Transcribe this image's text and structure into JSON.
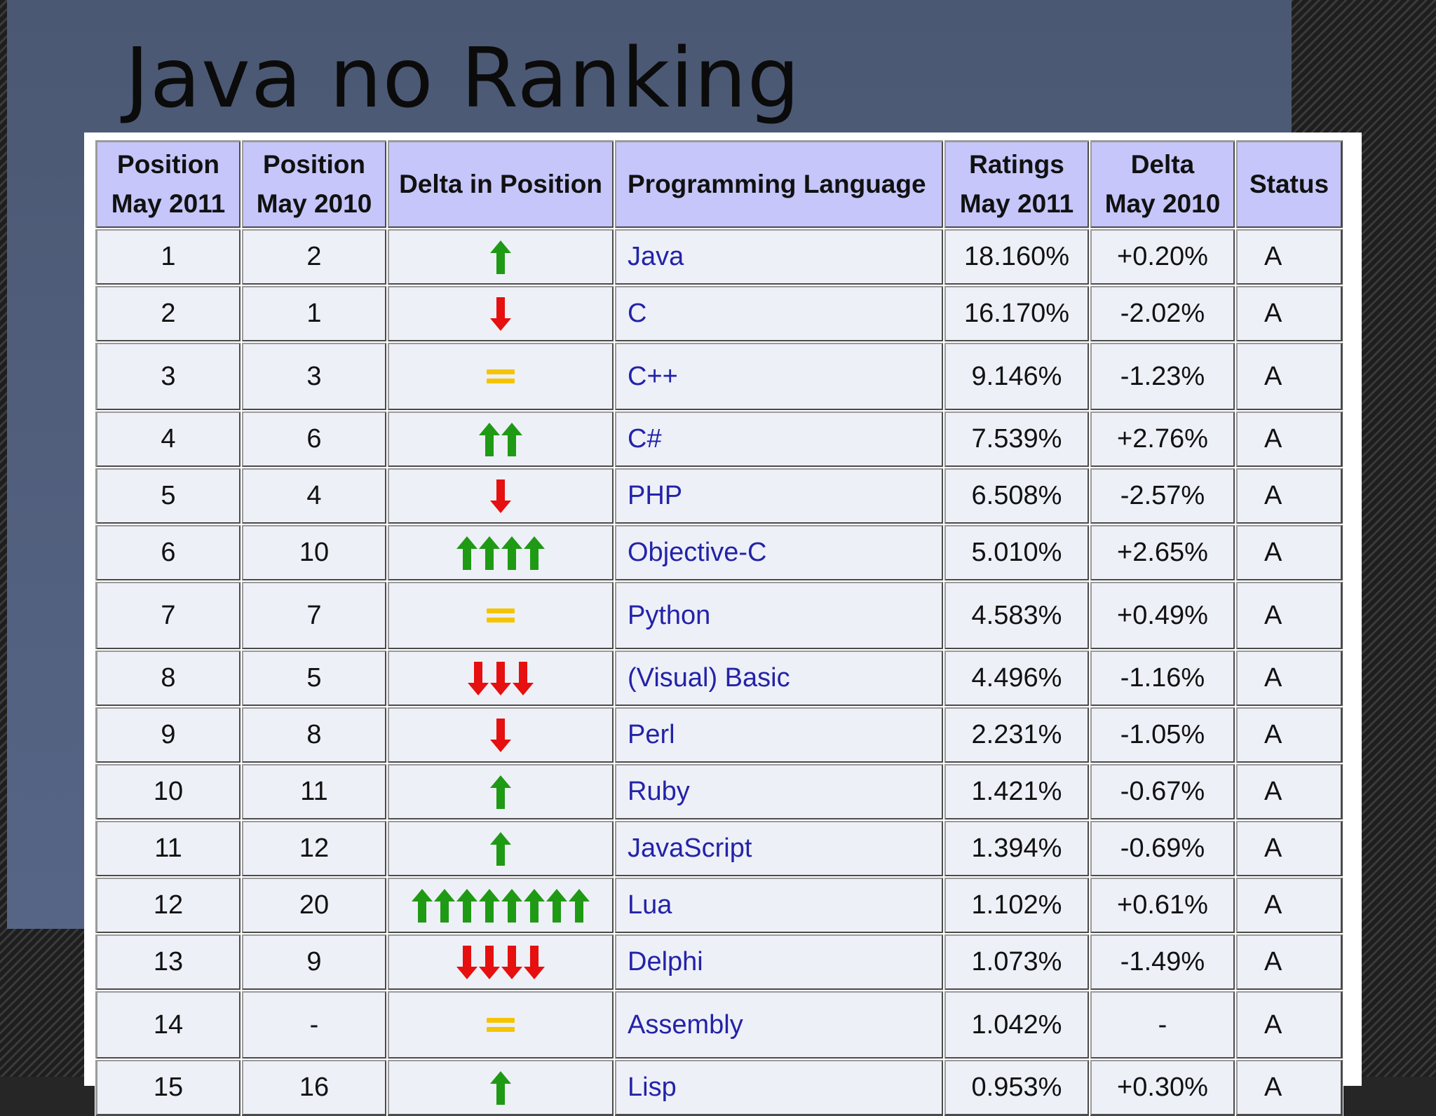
{
  "slide": {
    "title": "Java no Ranking"
  },
  "table": {
    "headers": [
      {
        "line1": "Position",
        "line2": "May 2011"
      },
      {
        "line1": "Position",
        "line2": "May 2010"
      },
      {
        "line1": "Delta in Position",
        "line2": ""
      },
      {
        "line1": "Programming Language",
        "line2": ""
      },
      {
        "line1": "Ratings",
        "line2": "May 2011"
      },
      {
        "line1": "Delta",
        "line2": "May 2010"
      },
      {
        "line1": "Status",
        "line2": ""
      }
    ],
    "rows": [
      {
        "pos2011": "1",
        "pos2010": "2",
        "delta_type": "up",
        "delta_count": 1,
        "language": "Java",
        "rating": "18.160%",
        "delta": "+0.20%",
        "status": "A"
      },
      {
        "pos2011": "2",
        "pos2010": "1",
        "delta_type": "down",
        "delta_count": 1,
        "language": "C",
        "rating": "16.170%",
        "delta": "-2.02%",
        "status": "A"
      },
      {
        "pos2011": "3",
        "pos2010": "3",
        "delta_type": "same",
        "delta_count": 0,
        "language": "C++",
        "rating": "9.146%",
        "delta": "-1.23%",
        "status": "A"
      },
      {
        "pos2011": "4",
        "pos2010": "6",
        "delta_type": "up",
        "delta_count": 2,
        "language": "C#",
        "rating": "7.539%",
        "delta": "+2.76%",
        "status": "A"
      },
      {
        "pos2011": "5",
        "pos2010": "4",
        "delta_type": "down",
        "delta_count": 1,
        "language": "PHP",
        "rating": "6.508%",
        "delta": "-2.57%",
        "status": "A"
      },
      {
        "pos2011": "6",
        "pos2010": "10",
        "delta_type": "up",
        "delta_count": 4,
        "language": "Objective-C",
        "rating": "5.010%",
        "delta": "+2.65%",
        "status": "A"
      },
      {
        "pos2011": "7",
        "pos2010": "7",
        "delta_type": "same",
        "delta_count": 0,
        "language": "Python",
        "rating": "4.583%",
        "delta": "+0.49%",
        "status": "A"
      },
      {
        "pos2011": "8",
        "pos2010": "5",
        "delta_type": "down",
        "delta_count": 3,
        "language": "(Visual) Basic",
        "rating": "4.496%",
        "delta": "-1.16%",
        "status": "A"
      },
      {
        "pos2011": "9",
        "pos2010": "8",
        "delta_type": "down",
        "delta_count": 1,
        "language": "Perl",
        "rating": "2.231%",
        "delta": "-1.05%",
        "status": "A"
      },
      {
        "pos2011": "10",
        "pos2010": "11",
        "delta_type": "up",
        "delta_count": 1,
        "language": "Ruby",
        "rating": "1.421%",
        "delta": "-0.67%",
        "status": "A"
      },
      {
        "pos2011": "11",
        "pos2010": "12",
        "delta_type": "up",
        "delta_count": 1,
        "language": "JavaScript",
        "rating": "1.394%",
        "delta": "-0.69%",
        "status": "A"
      },
      {
        "pos2011": "12",
        "pos2010": "20",
        "delta_type": "up",
        "delta_count": 8,
        "language": "Lua",
        "rating": "1.102%",
        "delta": "+0.61%",
        "status": "A"
      },
      {
        "pos2011": "13",
        "pos2010": "9",
        "delta_type": "down",
        "delta_count": 4,
        "language": "Delphi",
        "rating": "1.073%",
        "delta": "-1.49%",
        "status": "A"
      },
      {
        "pos2011": "14",
        "pos2010": "-",
        "delta_type": "same",
        "delta_count": 0,
        "language": "Assembly",
        "rating": "1.042%",
        "delta": "-",
        "status": "A"
      },
      {
        "pos2011": "15",
        "pos2010": "16",
        "delta_type": "up",
        "delta_count": 1,
        "language": "Lisp",
        "rating": "0.953%",
        "delta": "+0.30%",
        "status": "A"
      }
    ]
  },
  "colors": {
    "up": "#1f9a14",
    "down": "#e5100f",
    "same": "#f5c400",
    "link": "#2323a8",
    "header_bg": "#c6c6fb"
  },
  "icons": {
    "up": "arrow-up-icon",
    "down": "arrow-down-icon",
    "same": "equals-icon"
  }
}
